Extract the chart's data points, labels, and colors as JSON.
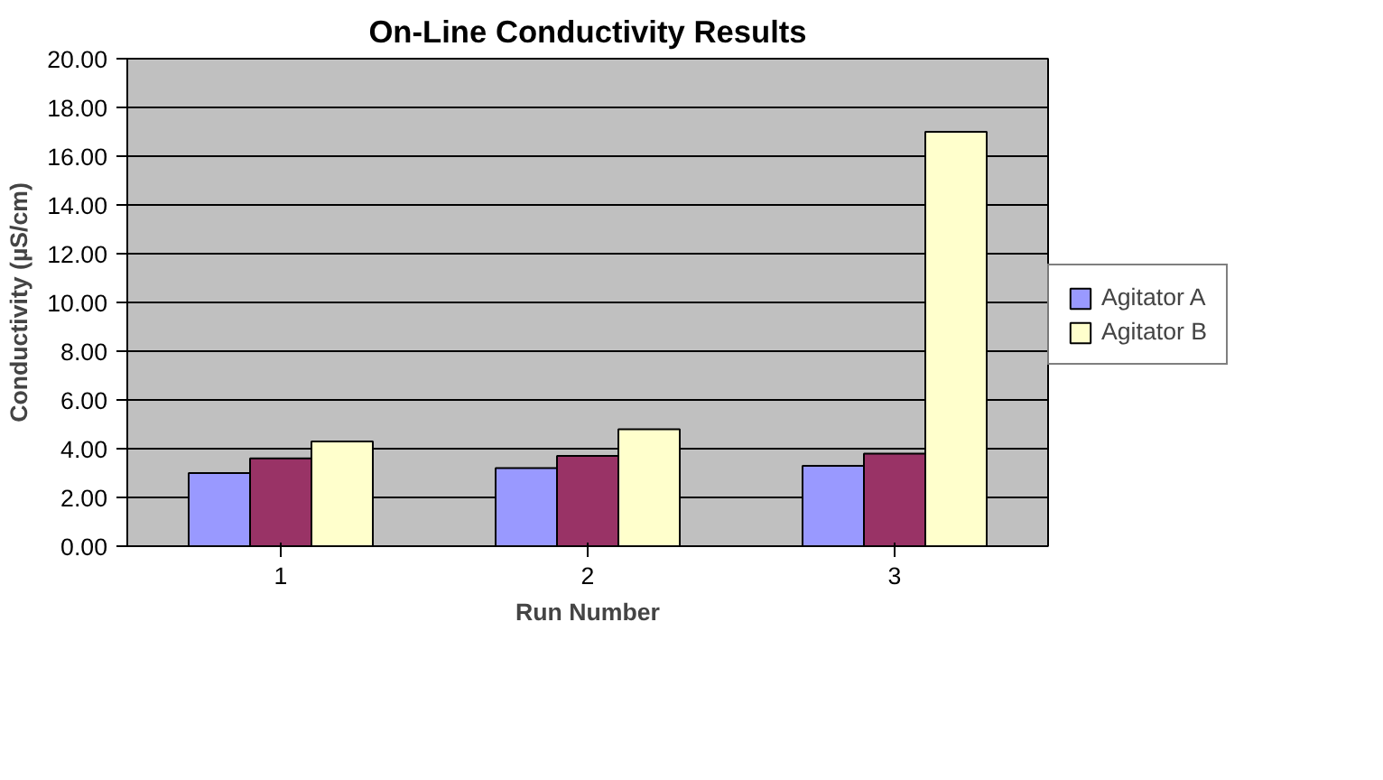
{
  "chart_data": {
    "type": "bar",
    "title": "On-Line Conductivity Results",
    "xlabel": "Run Number",
    "ylabel": "Conductivity (µS/cm)",
    "categories": [
      "1",
      "2",
      "3"
    ],
    "series": [
      {
        "name": "Agitator A",
        "color": "#9999ff",
        "values": [
          3.0,
          3.2,
          3.3
        ]
      },
      {
        "color": "#993366",
        "values": [
          3.6,
          3.7,
          3.8
        ]
      },
      {
        "name": "Agitator B",
        "color": "#ffffcc",
        "values": [
          4.3,
          4.8,
          17.0
        ]
      }
    ],
    "ylim": [
      0,
      20
    ],
    "yticks": [
      {
        "value": 0,
        "label": "0.00"
      },
      {
        "value": 2,
        "label": "2.00"
      },
      {
        "value": 4,
        "label": "4.00"
      },
      {
        "value": 6,
        "label": "6.00"
      },
      {
        "value": 8,
        "label": "8.00"
      },
      {
        "value": 10,
        "label": "10.00"
      },
      {
        "value": 12,
        "label": "12.00"
      },
      {
        "value": 14,
        "label": "14.00"
      },
      {
        "value": 16,
        "label": "16.00"
      },
      {
        "value": 18,
        "label": "18.00"
      },
      {
        "value": 20,
        "label": "20.00"
      }
    ],
    "grid": "y",
    "legend": "right"
  }
}
